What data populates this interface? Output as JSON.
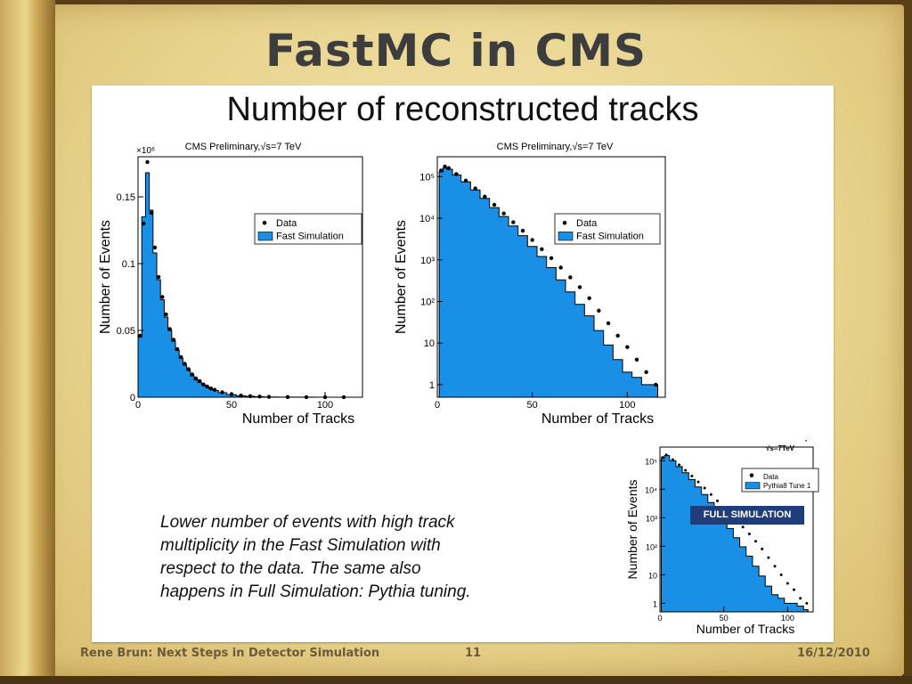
{
  "slide": {
    "title": "FastMC in CMS",
    "heading": "Number of reconstructed tracks",
    "note_lines": [
      "Lower number of events with high track",
      "multiplicity in the Fast Simulation with",
      "respect to the data. The same also",
      "happens in Full Simulation: Pythia tuning."
    ],
    "badge": "FULL SIMULATION"
  },
  "footer": {
    "author": "Rene Brun: Next Steps in Detector Simulation",
    "page": "11",
    "date": "16/12/2010"
  },
  "colors": {
    "fill": "#1a8fe6",
    "data": "#000000",
    "badge": "#1f3d7a"
  },
  "chart_data": [
    {
      "type": "area",
      "title": "CMS Preliminary,√s=7 TeV",
      "xlabel": "Number of Tracks",
      "ylabel": "Number of Events",
      "y_multiplier": "×10⁶",
      "xlim": [
        0,
        120
      ],
      "ylim": [
        0,
        0.18
      ],
      "xticks": [
        "0",
        "50",
        "100"
      ],
      "yticks": [
        "0",
        "0.05",
        "0.1",
        "0.15"
      ],
      "legend": [
        "Data",
        "Fast Simulation"
      ],
      "legend_position": "top-right",
      "x": [
        1,
        3,
        5,
        7,
        9,
        11,
        13,
        15,
        17,
        19,
        21,
        23,
        25,
        27,
        29,
        31,
        33,
        35,
        37,
        39,
        41,
        45,
        50,
        55,
        60,
        65,
        70,
        80,
        90,
        100,
        110,
        118
      ],
      "fast_simulation": [
        0.045,
        0.135,
        0.168,
        0.14,
        0.108,
        0.088,
        0.073,
        0.06,
        0.05,
        0.042,
        0.035,
        0.029,
        0.024,
        0.02,
        0.016,
        0.013,
        0.011,
        0.009,
        0.0075,
        0.006,
        0.005,
        0.0033,
        0.0019,
        0.0011,
        0.0007,
        0.0004,
        0.0002,
        0.0001,
        5e-05,
        2e-05,
        1e-05,
        0
      ],
      "data": [
        0.046,
        0.13,
        0.176,
        0.138,
        0.112,
        0.09,
        0.075,
        0.062,
        0.051,
        0.043,
        0.036,
        0.03,
        0.025,
        0.021,
        0.017,
        0.014,
        0.012,
        0.0095,
        0.008,
        0.0065,
        0.0055,
        0.0037,
        0.0022,
        0.0013,
        0.0008,
        0.0005,
        0.0003,
        0.00012,
        6e-05,
        3e-05,
        1e-05,
        0
      ]
    },
    {
      "type": "area",
      "title": "CMS Preliminary,√s=7 TeV",
      "xlabel": "Number of Tracks",
      "ylabel": "Number of Events",
      "log_y": true,
      "xlim": [
        0,
        120
      ],
      "ylim": [
        0.5,
        300000
      ],
      "xticks": [
        "0",
        "50",
        "100"
      ],
      "yticks": [
        "1",
        "10",
        "10²",
        "10³",
        "10⁴",
        "10⁵"
      ],
      "legend": [
        "Data",
        "Fast Simulation"
      ],
      "legend_position": "top-right",
      "x": [
        2,
        4,
        6,
        10,
        15,
        20,
        25,
        30,
        35,
        40,
        45,
        50,
        55,
        60,
        65,
        70,
        75,
        80,
        85,
        90,
        95,
        100,
        105,
        110,
        115
      ],
      "fast_simulation": [
        130000,
        160000,
        150000,
        110000,
        75000,
        48000,
        30000,
        18000,
        11000,
        6500,
        3800,
        2100,
        1200,
        650,
        330,
        170,
        85,
        45,
        20,
        9,
        4,
        2,
        1.5,
        1,
        1
      ],
      "data": [
        140000,
        175000,
        160000,
        115000,
        80000,
        52000,
        33000,
        21000,
        13000,
        8000,
        5000,
        3000,
        1800,
        1100,
        650,
        380,
        220,
        120,
        60,
        30,
        15,
        8,
        4,
        2,
        1
      ]
    },
    {
      "type": "area",
      "title": "CMS Preliminary",
      "subtitle": "√s=7TeV",
      "xlabel": "Number of Tracks",
      "ylabel": "Number of Events",
      "log_y": true,
      "xlim": [
        0,
        120
      ],
      "ylim": [
        0.5,
        300000
      ],
      "xticks": [
        "0",
        "50",
        "100"
      ],
      "yticks": [
        "1",
        "10",
        "10²",
        "10³",
        "10⁴",
        "10⁵"
      ],
      "legend": [
        "Data",
        "Pythia8 Tune 1"
      ],
      "legend_position": "top-right",
      "x": [
        2,
        5,
        10,
        15,
        20,
        25,
        30,
        35,
        40,
        45,
        50,
        55,
        60,
        65,
        70,
        75,
        80,
        85,
        90,
        95,
        100,
        105,
        110,
        115
      ],
      "full_simulation": [
        120000,
        150000,
        100000,
        62000,
        38000,
        22000,
        12000,
        6500,
        3400,
        1700,
        850,
        420,
        200,
        95,
        45,
        20,
        9,
        4,
        2,
        1.5,
        1,
        1,
        0.8,
        0.6
      ],
      "data": [
        130000,
        160000,
        110000,
        72000,
        46000,
        29000,
        18000,
        11000,
        6500,
        3900,
        2300,
        1400,
        800,
        470,
        270,
        150,
        80,
        40,
        20,
        10,
        5,
        3,
        1.5,
        1
      ]
    }
  ]
}
